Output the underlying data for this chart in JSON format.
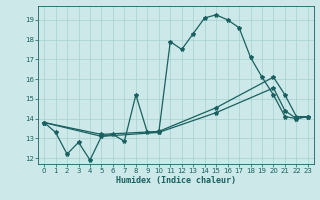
{
  "xlabel": "Humidex (Indice chaleur)",
  "bg_color": "#cce8e8",
  "grid_color": "#a8d0d0",
  "line_color": "#1a6060",
  "xlim": [
    -0.5,
    23.5
  ],
  "ylim": [
    11.7,
    19.7
  ],
  "yticks": [
    12,
    13,
    14,
    15,
    16,
    17,
    18,
    19
  ],
  "xticks": [
    0,
    1,
    2,
    3,
    4,
    5,
    6,
    7,
    8,
    9,
    10,
    11,
    12,
    13,
    14,
    15,
    16,
    17,
    18,
    19,
    20,
    21,
    22,
    23
  ],
  "series1": [
    [
      0,
      13.8
    ],
    [
      1,
      13.3
    ],
    [
      2,
      12.2
    ],
    [
      3,
      12.8
    ],
    [
      4,
      11.9
    ],
    [
      5,
      13.1
    ],
    [
      6,
      13.2
    ],
    [
      7,
      12.85
    ],
    [
      8,
      15.2
    ],
    [
      9,
      13.3
    ],
    [
      10,
      13.3
    ],
    [
      11,
      17.9
    ],
    [
      12,
      17.5
    ],
    [
      13,
      18.3
    ],
    [
      14,
      19.1
    ],
    [
      15,
      19.25
    ],
    [
      16,
      19.0
    ],
    [
      17,
      18.6
    ],
    [
      18,
      17.1
    ],
    [
      19,
      16.1
    ],
    [
      20,
      15.2
    ],
    [
      21,
      14.1
    ],
    [
      22,
      14.0
    ],
    [
      23,
      14.1
    ]
  ],
  "series2": [
    [
      0,
      13.8
    ],
    [
      5,
      13.2
    ],
    [
      10,
      13.35
    ],
    [
      15,
      14.55
    ],
    [
      20,
      16.1
    ],
    [
      21,
      15.2
    ],
    [
      22,
      14.1
    ],
    [
      23,
      14.1
    ]
  ],
  "series3": [
    [
      0,
      13.8
    ],
    [
      5,
      13.1
    ],
    [
      10,
      13.3
    ],
    [
      15,
      14.3
    ],
    [
      20,
      15.55
    ],
    [
      21,
      14.4
    ],
    [
      22,
      14.0
    ],
    [
      23,
      14.1
    ]
  ]
}
